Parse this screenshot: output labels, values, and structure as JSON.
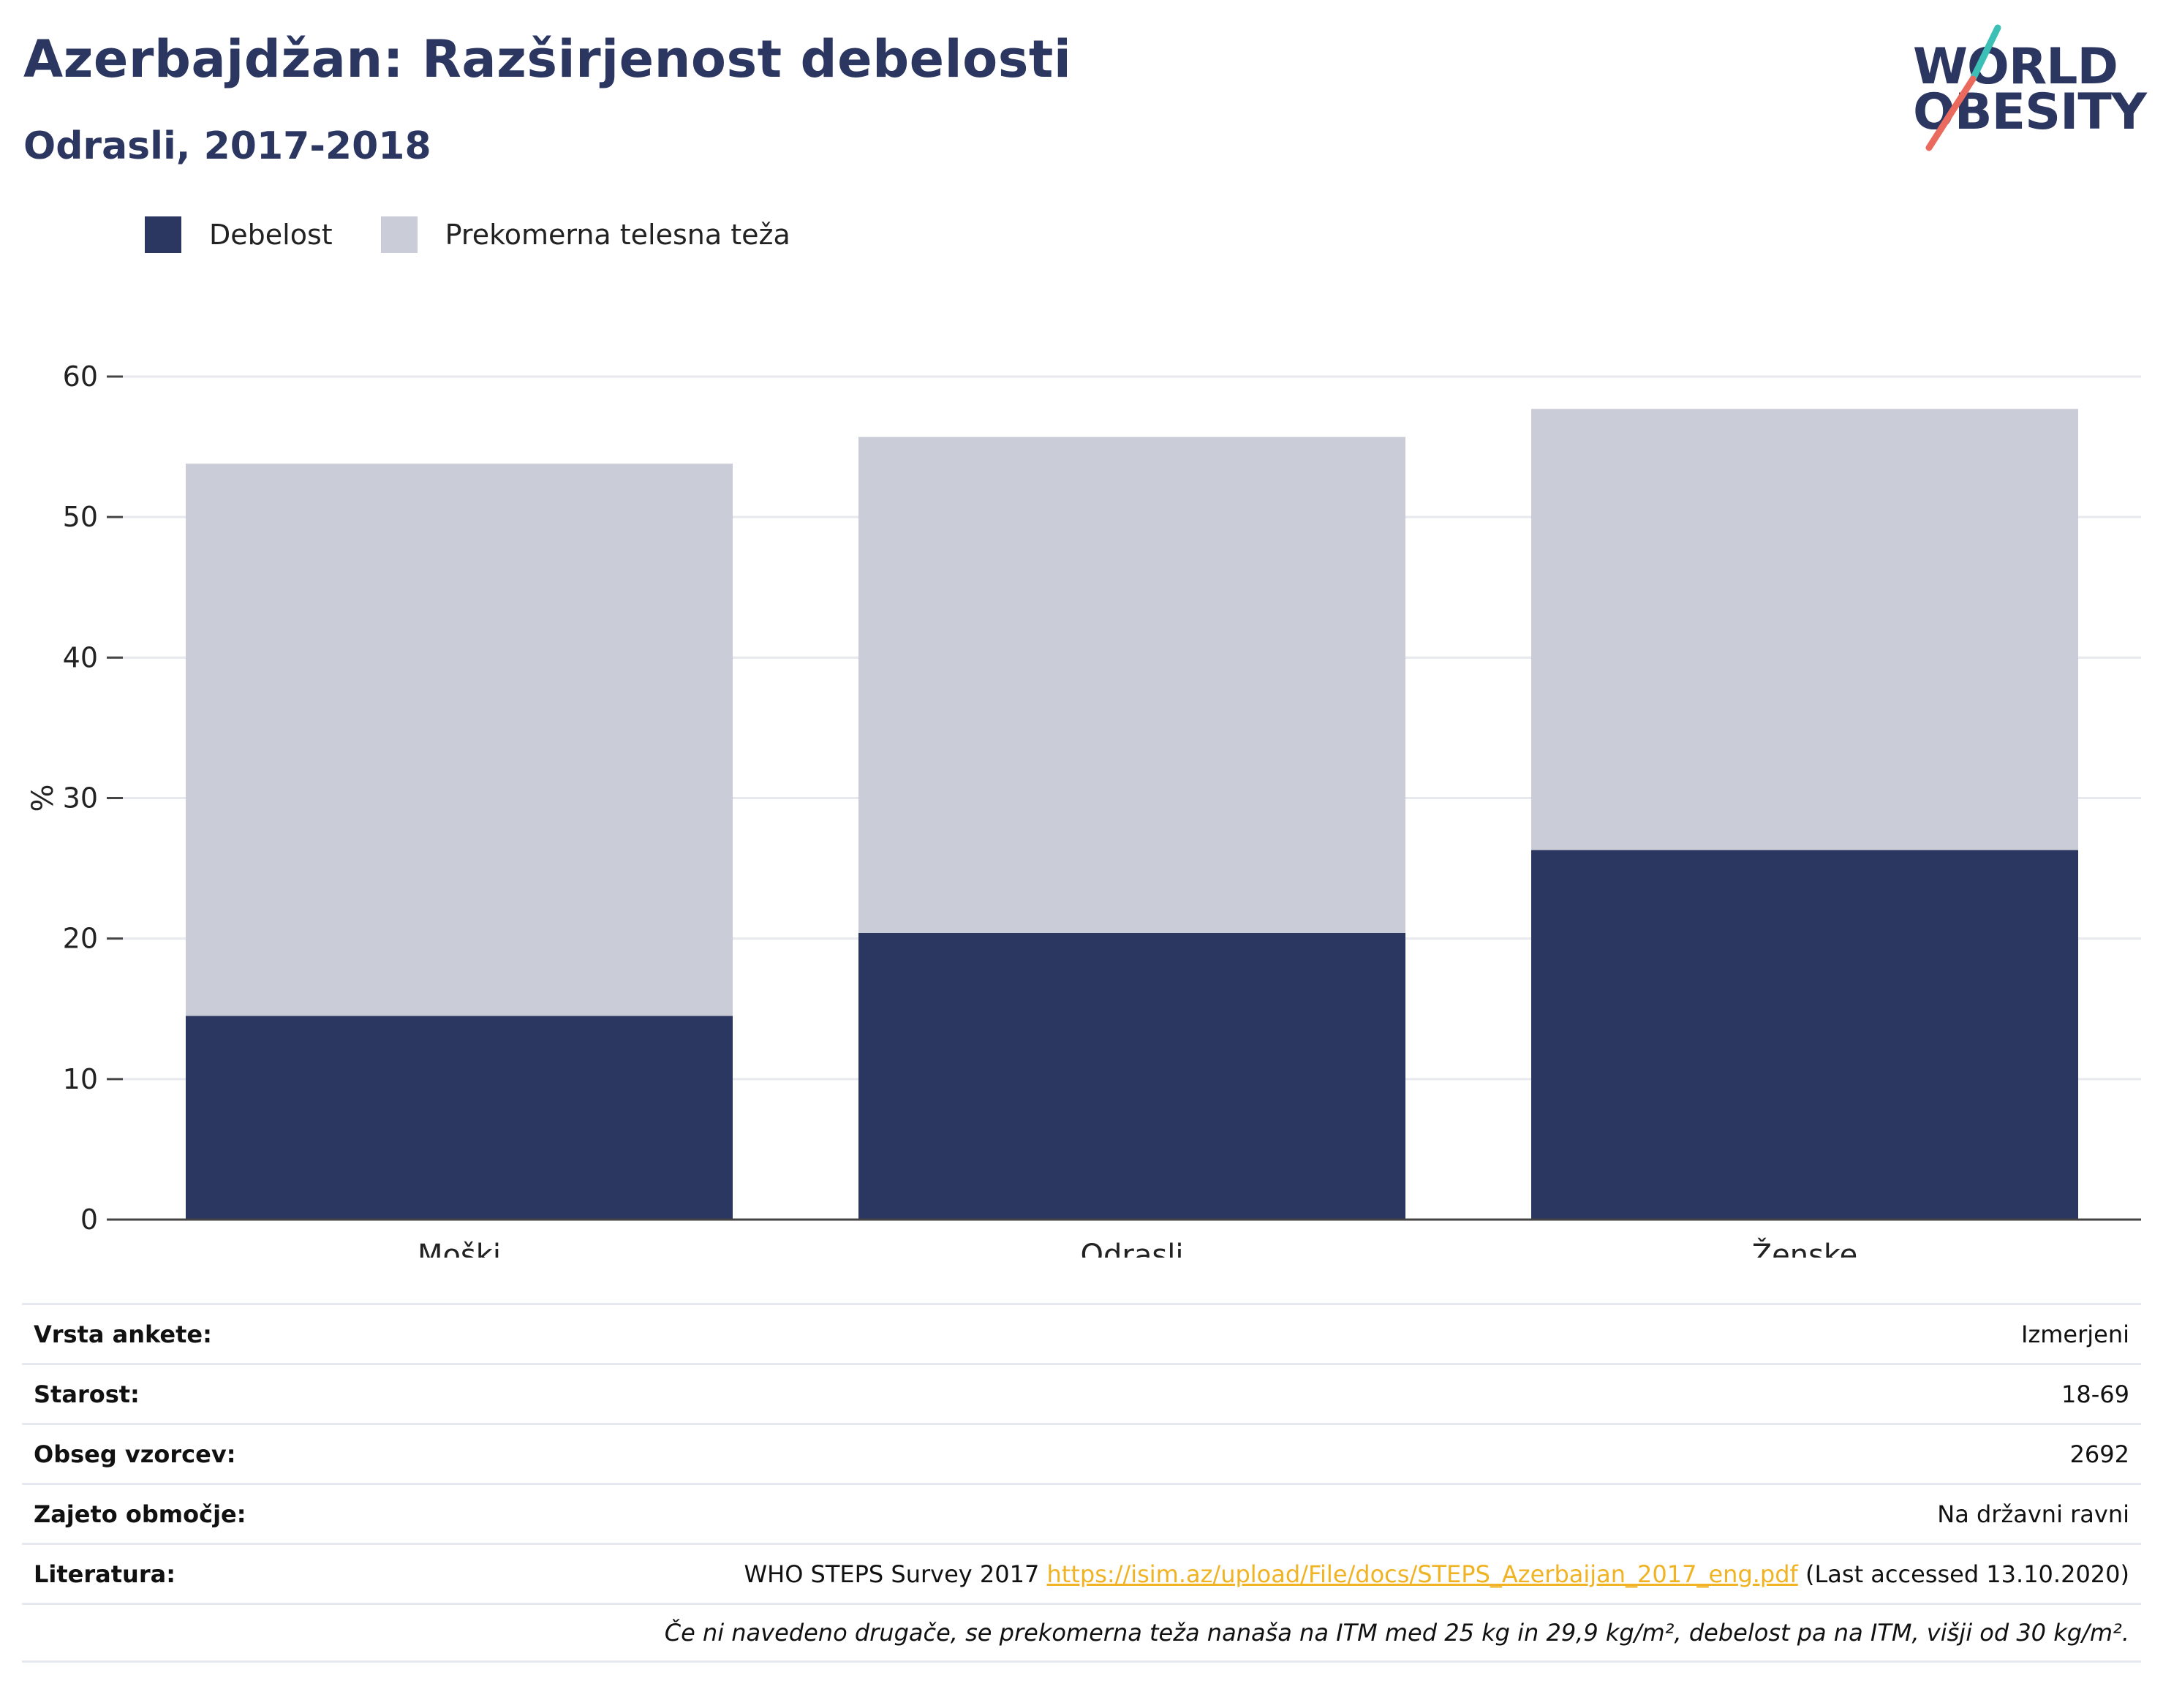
{
  "title": "Azerbajdžan: Razširjenost debelosti",
  "subtitle": "Odrasli, 2017-2018",
  "logo": {
    "line1": "WORLD",
    "line2": "OBESITY"
  },
  "colors": {
    "obesity": "#2b3661",
    "overweight": "#cacdd8",
    "accent_teal": "#3cbfb4",
    "accent_coral": "#ea6b5d",
    "link": "#f0b323"
  },
  "legend": [
    {
      "label": "Debelost",
      "color": "#2b3661"
    },
    {
      "label": "Prekomerna telesna teža",
      "color": "#cacdd8"
    }
  ],
  "chart_data": {
    "type": "bar",
    "stacked": true,
    "categories": [
      "Moški",
      "Odrasli",
      "Ženske"
    ],
    "series": [
      {
        "name": "Debelost",
        "values": [
          14.5,
          20.4,
          26.3
        ]
      },
      {
        "name": "Prekomerna telesna teža",
        "values": [
          39.3,
          35.3,
          31.4
        ]
      }
    ],
    "ylabel": "%",
    "ylim": [
      0,
      60
    ],
    "yticks": [
      0,
      10,
      20,
      30,
      40,
      50,
      60
    ],
    "grid": true,
    "legend_position": "top-left"
  },
  "info": {
    "rows": [
      {
        "key": "Vrsta ankete:",
        "value": "Izmerjeni"
      },
      {
        "key": "Starost:",
        "value": "18-69"
      },
      {
        "key": "Obseg vzorcev:",
        "value": "2692"
      },
      {
        "key": "Zajeto območje:",
        "value": "Na državni ravni"
      }
    ],
    "literature": {
      "key": "Literatura:",
      "prefix": "WHO STEPS Survey 2017 ",
      "link": "https://isim.az/upload/File/docs/STEPS_Azerbaijan_2017_eng.pdf",
      "suffix": " (Last accessed 13.10.2020)"
    },
    "note": "Če ni navedeno drugače, se prekomerna teža nanaša na ITM med 25 kg in 29,9 kg/m², debelost pa na ITM, višji od 30 kg/m²."
  }
}
